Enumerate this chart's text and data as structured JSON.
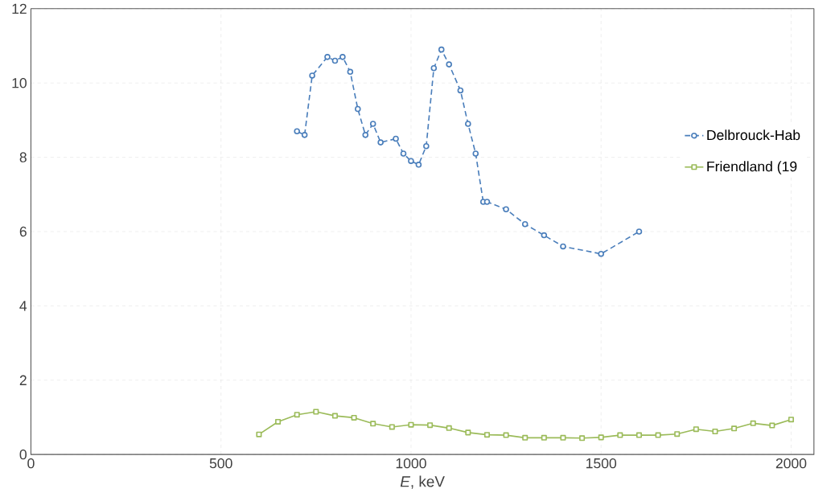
{
  "chart_data": {
    "type": "line",
    "xlabel": "*E*, keV",
    "xlim": [
      0,
      2060
    ],
    "xticks": [
      0,
      500,
      1000,
      1500,
      2000
    ],
    "ylim": [
      0,
      12
    ],
    "yticks": [
      0,
      2,
      4,
      6,
      8,
      10,
      12
    ],
    "grid": true,
    "legend": "right",
    "series": [
      {
        "name": "Delbrouck-Hab",
        "color": "#4a7ebb",
        "marker": "circle",
        "line_style": "dashed",
        "x": [
          700,
          720,
          740,
          780,
          800,
          820,
          840,
          860,
          880,
          900,
          920,
          960,
          980,
          1000,
          1020,
          1040,
          1060,
          1080,
          1100,
          1130,
          1150,
          1170,
          1190,
          1200,
          1250,
          1300,
          1350,
          1400,
          1500,
          1600
        ],
        "values": [
          8.7,
          8.6,
          10.2,
          10.7,
          10.6,
          10.7,
          10.3,
          9.3,
          8.6,
          8.9,
          8.4,
          8.5,
          8.1,
          7.9,
          7.8,
          8.3,
          10.4,
          10.9,
          10.5,
          9.8,
          8.9,
          8.1,
          6.8,
          6.8,
          6.6,
          6.2,
          5.9,
          5.6,
          5.4,
          6.0
        ]
      },
      {
        "name": "Friendland (19",
        "color": "#9bbb59",
        "marker": "square",
        "line_style": "solid",
        "x": [
          600,
          650,
          700,
          750,
          800,
          850,
          900,
          950,
          1000,
          1050,
          1100,
          1150,
          1200,
          1250,
          1300,
          1350,
          1400,
          1450,
          1500,
          1550,
          1600,
          1650,
          1700,
          1750,
          1800,
          1850,
          1900,
          1950,
          2000
        ],
        "values": [
          0.54,
          0.88,
          1.07,
          1.15,
          1.04,
          0.99,
          0.83,
          0.74,
          0.8,
          0.79,
          0.71,
          0.59,
          0.53,
          0.52,
          0.45,
          0.45,
          0.45,
          0.44,
          0.46,
          0.52,
          0.52,
          0.52,
          0.55,
          0.68,
          0.62,
          0.7,
          0.84,
          0.78,
          0.94
        ]
      }
    ]
  }
}
